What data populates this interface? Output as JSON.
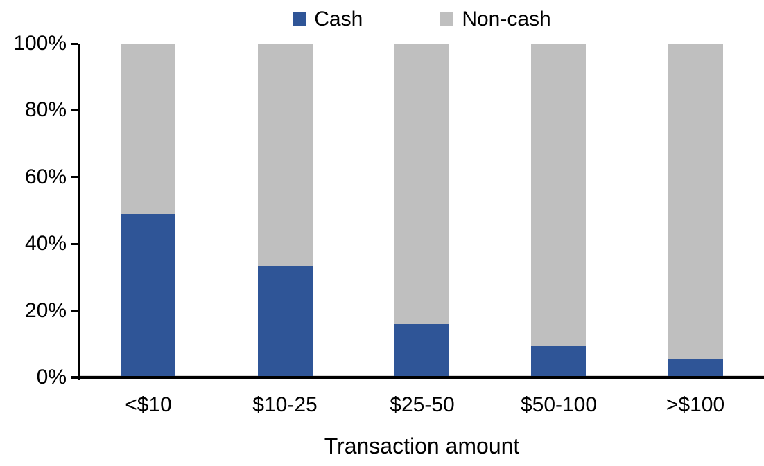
{
  "chart_data": {
    "type": "bar",
    "stacked": true,
    "percent_stacked": true,
    "title": "",
    "xlabel": "Transaction amount",
    "ylabel": "",
    "categories": [
      "<$10",
      "$10-25",
      "$25-50",
      "$50-100",
      ">$100"
    ],
    "series": [
      {
        "name": "Cash",
        "color": "#2F5597",
        "values": [
          49,
          33.5,
          16,
          9.5,
          5.5
        ]
      },
      {
        "name": "Non-cash",
        "color": "#BFBFBF",
        "values": [
          51,
          66.5,
          84,
          90.5,
          94.5
        ]
      }
    ],
    "ylim": [
      0,
      100
    ],
    "yticks": [
      {
        "value": 0,
        "label": "0%"
      },
      {
        "value": 20,
        "label": "20%"
      },
      {
        "value": 40,
        "label": "40%"
      },
      {
        "value": 60,
        "label": "60%"
      },
      {
        "value": 80,
        "label": "80%"
      },
      {
        "value": 100,
        "label": "100%"
      }
    ],
    "grid": false,
    "legend_position": "top-center"
  },
  "colors": {
    "background": "#FFFFFF",
    "axis": "#000000",
    "text": "#000000",
    "baseline_gridline": "#D9D9D9"
  }
}
